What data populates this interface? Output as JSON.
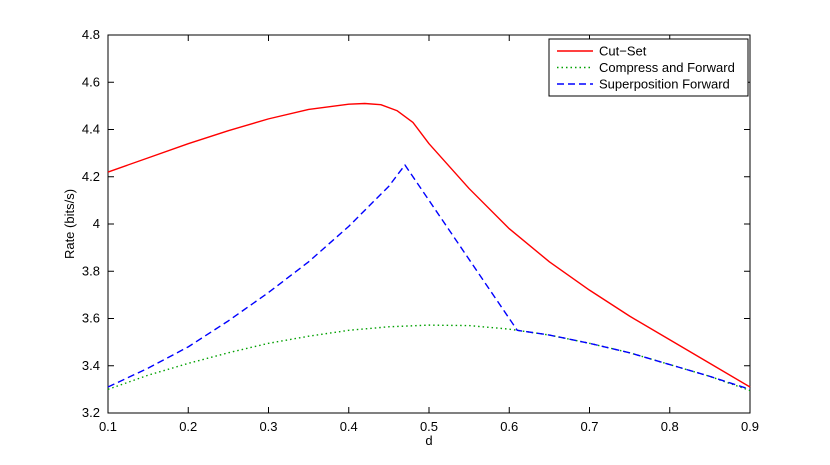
{
  "chart_data": {
    "type": "line",
    "title": "",
    "xlabel": "d",
    "ylabel": "Rate (bits/s)",
    "xlim": [
      0.1,
      0.9
    ],
    "ylim": [
      3.2,
      4.8
    ],
    "xticks": [
      "0.1",
      "0.2",
      "0.3",
      "0.4",
      "0.5",
      "0.6",
      "0.7",
      "0.8",
      "0.9"
    ],
    "yticks": [
      "3.2",
      "3.4",
      "3.6",
      "3.8",
      "4",
      "4.2",
      "4.4",
      "4.6",
      "4.8"
    ],
    "grid": false,
    "legend_position": "top-right",
    "series": [
      {
        "name": "Cut−Set",
        "color": "#ff0000",
        "style": "solid",
        "x": [
          0.1,
          0.15,
          0.2,
          0.25,
          0.3,
          0.35,
          0.4,
          0.42,
          0.44,
          0.46,
          0.48,
          0.5,
          0.55,
          0.6,
          0.65,
          0.7,
          0.75,
          0.8,
          0.85,
          0.9
        ],
        "y": [
          4.22,
          4.28,
          4.34,
          4.395,
          4.445,
          4.485,
          4.507,
          4.51,
          4.505,
          4.48,
          4.43,
          4.34,
          4.15,
          3.98,
          3.84,
          3.72,
          3.61,
          3.51,
          3.41,
          3.31
        ]
      },
      {
        "name": "Compress and Forward",
        "color": "#00a000",
        "style": "dotted",
        "x": [
          0.1,
          0.15,
          0.2,
          0.25,
          0.3,
          0.35,
          0.4,
          0.45,
          0.5,
          0.55,
          0.6,
          0.65,
          0.7,
          0.75,
          0.8,
          0.85,
          0.9
        ],
        "y": [
          3.3,
          3.36,
          3.41,
          3.455,
          3.495,
          3.525,
          3.55,
          3.565,
          3.572,
          3.57,
          3.555,
          3.53,
          3.495,
          3.455,
          3.405,
          3.355,
          3.295
        ]
      },
      {
        "name": "Superposition Forward",
        "color": "#0000ff",
        "style": "dashed",
        "x": [
          0.1,
          0.15,
          0.2,
          0.25,
          0.3,
          0.35,
          0.4,
          0.45,
          0.47,
          0.61,
          0.65,
          0.7,
          0.75,
          0.8,
          0.85,
          0.9
        ],
        "y": [
          3.31,
          3.39,
          3.48,
          3.59,
          3.71,
          3.84,
          3.99,
          4.16,
          4.25,
          3.55,
          3.53,
          3.495,
          3.455,
          3.405,
          3.355,
          3.3
        ]
      }
    ]
  }
}
